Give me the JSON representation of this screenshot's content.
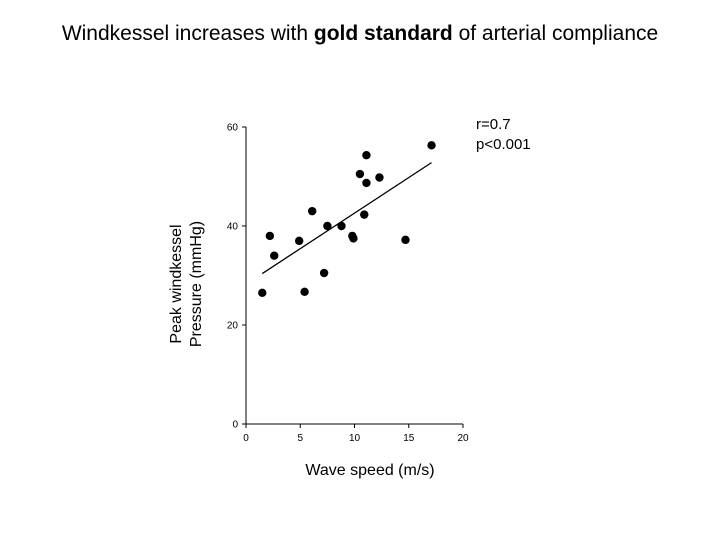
{
  "title": {
    "part1": "Windkessel increases with ",
    "bold": "gold standard",
    "part2": " of arterial compliance"
  },
  "stats": {
    "r": "r=0.7",
    "p": "p<0.001"
  },
  "chart_data": {
    "type": "scatter",
    "xlabel": "Wave speed (m/s)",
    "ylabel_lines": [
      "Peak windkessel",
      "Pressure (mmHg)"
    ],
    "xlim": [
      0,
      20
    ],
    "ylim": [
      0,
      60
    ],
    "xticks": [
      0,
      5,
      10,
      15,
      20
    ],
    "yticks": [
      0,
      20,
      40,
      60
    ],
    "grid": false,
    "points": [
      {
        "x": 1.5,
        "y": 26.5
      },
      {
        "x": 2.2,
        "y": 38.0
      },
      {
        "x": 2.6,
        "y": 34.0
      },
      {
        "x": 4.9,
        "y": 37.0
      },
      {
        "x": 5.4,
        "y": 26.7
      },
      {
        "x": 6.1,
        "y": 43.0
      },
      {
        "x": 7.2,
        "y": 30.5
      },
      {
        "x": 7.5,
        "y": 40.0
      },
      {
        "x": 8.8,
        "y": 40.0
      },
      {
        "x": 9.8,
        "y": 38.0
      },
      {
        "x": 9.9,
        "y": 37.5
      },
      {
        "x": 10.5,
        "y": 50.5
      },
      {
        "x": 10.9,
        "y": 42.3
      },
      {
        "x": 11.1,
        "y": 54.3
      },
      {
        "x": 11.1,
        "y": 48.7
      },
      {
        "x": 12.3,
        "y": 49.8
      },
      {
        "x": 14.7,
        "y": 37.2
      },
      {
        "x": 17.1,
        "y": 56.3
      }
    ],
    "fit_line": {
      "x": [
        1.5,
        17.1
      ],
      "y": [
        30.4,
        52.8
      ]
    }
  }
}
